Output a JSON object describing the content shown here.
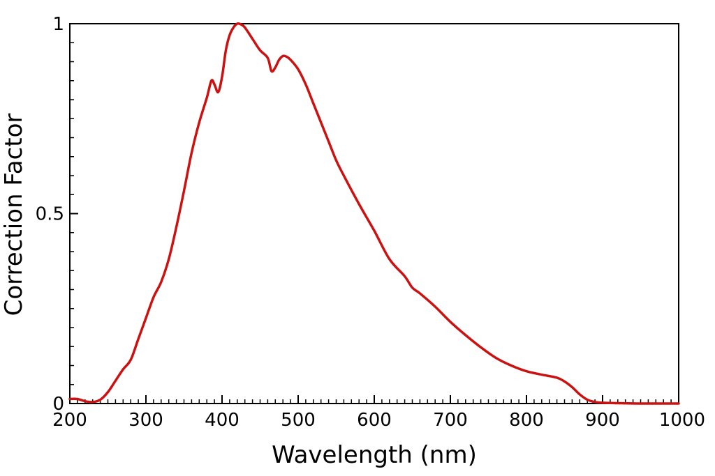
{
  "chart_data": {
    "type": "line",
    "title": "",
    "xlabel": "Wavelength (nm)",
    "ylabel": "Correction Factor",
    "xlim": [
      200,
      1000
    ],
    "ylim": [
      0,
      1
    ],
    "x_ticks": [
      200,
      300,
      400,
      500,
      600,
      700,
      800,
      900,
      1000
    ],
    "x_tick_labels": [
      "200",
      "300",
      "400",
      "500",
      "600",
      "700",
      "800",
      "900",
      "1000"
    ],
    "x_minor_step": 10,
    "y_ticks": [
      0,
      0.5,
      1
    ],
    "y_tick_labels": [
      "0",
      "0.5",
      "1"
    ],
    "y_minor_step": 0.05,
    "grid": false,
    "legend": "none",
    "colors": {
      "line": "#cc1111",
      "axis": "#000000"
    },
    "series": [
      {
        "x": [
          200,
          210,
          220,
          230,
          240,
          250,
          260,
          270,
          280,
          290,
          300,
          310,
          320,
          330,
          340,
          350,
          360,
          370,
          380,
          386,
          390,
          395,
          400,
          405,
          410,
          415,
          420,
          425,
          430,
          440,
          450,
          460,
          465,
          470,
          475,
          480,
          485,
          490,
          500,
          510,
          520,
          530,
          540,
          550,
          560,
          580,
          600,
          620,
          640,
          650,
          660,
          680,
          700,
          720,
          740,
          760,
          780,
          800,
          820,
          840,
          850,
          860,
          870,
          880,
          890,
          900,
          920,
          950,
          1000
        ],
        "y": [
          0.012,
          0.012,
          0.006,
          0.004,
          0.01,
          0.03,
          0.06,
          0.09,
          0.115,
          0.17,
          0.225,
          0.28,
          0.32,
          0.38,
          0.465,
          0.56,
          0.66,
          0.74,
          0.805,
          0.85,
          0.84,
          0.82,
          0.86,
          0.93,
          0.97,
          0.99,
          1.0,
          0.998,
          0.99,
          0.96,
          0.93,
          0.91,
          0.875,
          0.885,
          0.905,
          0.915,
          0.913,
          0.905,
          0.88,
          0.84,
          0.79,
          0.74,
          0.69,
          0.64,
          0.6,
          0.525,
          0.455,
          0.38,
          0.335,
          0.305,
          0.29,
          0.255,
          0.215,
          0.18,
          0.148,
          0.12,
          0.1,
          0.085,
          0.076,
          0.068,
          0.058,
          0.043,
          0.024,
          0.01,
          0.004,
          0.002,
          0.001,
          0.0,
          0.0
        ]
      }
    ]
  }
}
